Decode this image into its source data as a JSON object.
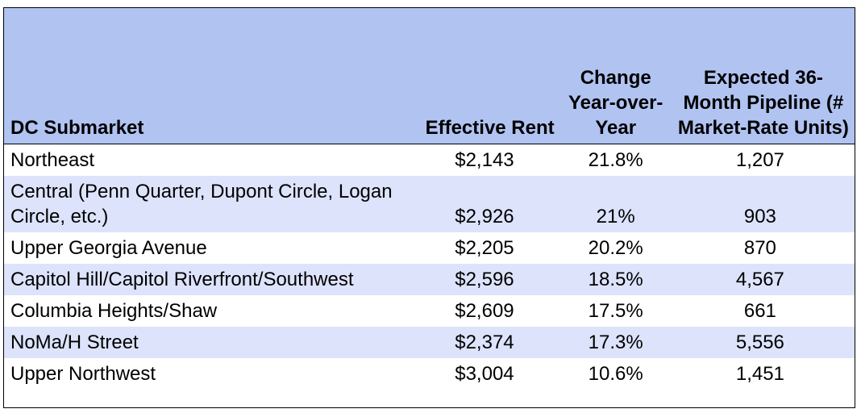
{
  "table": {
    "headers": {
      "submarket": "DC Submarket",
      "rent": "Effective Rent",
      "change": "Change Year-over-Year",
      "pipeline": "Expected 36-Month Pipeline (# Market-Rate Units)"
    },
    "rows": [
      {
        "submarket": "Northeast",
        "rent": "$2,143",
        "change": "21.8%",
        "pipeline": "1,207"
      },
      {
        "submarket": "Central (Penn Quarter, Dupont Circle, Logan Circle, etc.)",
        "rent": "$2,926",
        "change": "21%",
        "pipeline": "903"
      },
      {
        "submarket": "Upper Georgia Avenue",
        "rent": "$2,205",
        "change": "20.2%",
        "pipeline": "870"
      },
      {
        "submarket": "Capitol Hill/Capitol Riverfront/Southwest",
        "rent": "$2,596",
        "change": "18.5%",
        "pipeline": "4,567"
      },
      {
        "submarket": "Columbia Heights/Shaw",
        "rent": "$2,609",
        "change": "17.5%",
        "pipeline": "661"
      },
      {
        "submarket": "NoMa/H Street",
        "rent": "$2,374",
        "change": "17.3%",
        "pipeline": "5,556"
      },
      {
        "submarket": "Upper Northwest",
        "rent": "$3,004",
        "change": "10.6%",
        "pipeline": "1,451"
      }
    ]
  },
  "colors": {
    "header_bg": "#b1c3f1",
    "alt_row_bg": "#dde3fb",
    "border": "#000000"
  }
}
